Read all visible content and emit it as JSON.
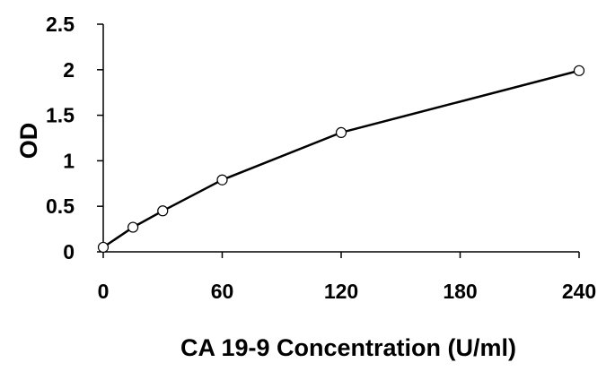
{
  "chart_data": {
    "type": "line",
    "title": "",
    "xlabel": "CA 19-9 Concentration (U/ml)",
    "ylabel": "OD",
    "xlim": [
      0,
      240
    ],
    "ylim": [
      0,
      2.5
    ],
    "xticks": [
      0,
      60,
      120,
      180,
      240
    ],
    "xtick_labels": [
      "0",
      "60",
      "120",
      "180",
      "240"
    ],
    "yticks": [
      0,
      0.5,
      1,
      1.5,
      2,
      2.5
    ],
    "ytick_labels": [
      "0",
      "0.5",
      "1",
      "1.5",
      "2",
      "2.5"
    ],
    "grid": false,
    "legend": "none",
    "marker": "open-circle",
    "line_color": "#000000",
    "x": [
      0,
      15,
      30,
      60,
      120,
      240
    ],
    "y": [
      0.05,
      0.27,
      0.45,
      0.79,
      1.31,
      1.99
    ]
  }
}
